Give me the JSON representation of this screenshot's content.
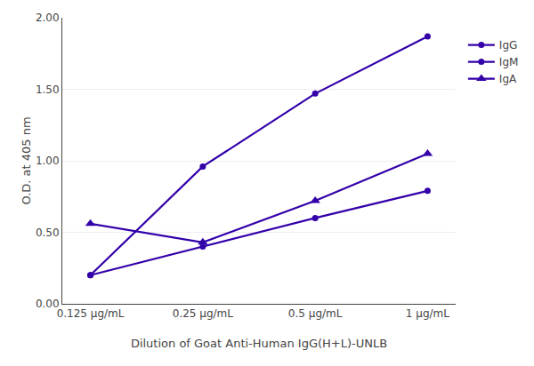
{
  "chart_data": {
    "type": "line",
    "xlabel": "Dilution of Goat Anti-Human IgG(H+L)-UNLB",
    "ylabel": "O.D. at 405 nm",
    "categories": [
      "0.125 μg/mL",
      "0.25 μg/mL",
      "0.5 μg/mL",
      "1 μg/mL"
    ],
    "series": [
      {
        "name": "IgG",
        "color": "#3300AA",
        "marker": "circle",
        "values": [
          0.2,
          0.4,
          0.6,
          0.79
        ]
      },
      {
        "name": "IgM",
        "color": "#3300AA",
        "marker": "circle",
        "values": [
          0.2,
          0.96,
          1.47,
          1.87
        ]
      },
      {
        "name": "IgA",
        "color": "#3300AA",
        "marker": "triangle-up",
        "values": [
          0.56,
          0.43,
          0.72,
          1.05
        ]
      }
    ],
    "ylim": [
      0.0,
      2.0
    ],
    "yticks": [
      {
        "value": 0,
        "label": "0.00"
      },
      {
        "value": 0.5,
        "label": "0.50"
      },
      {
        "value": 1,
        "label": "1.00"
      },
      {
        "value": 1.5,
        "label": "1.50"
      },
      {
        "value": 2,
        "label": "2.00"
      }
    ],
    "grid": true,
    "legend": "right"
  }
}
